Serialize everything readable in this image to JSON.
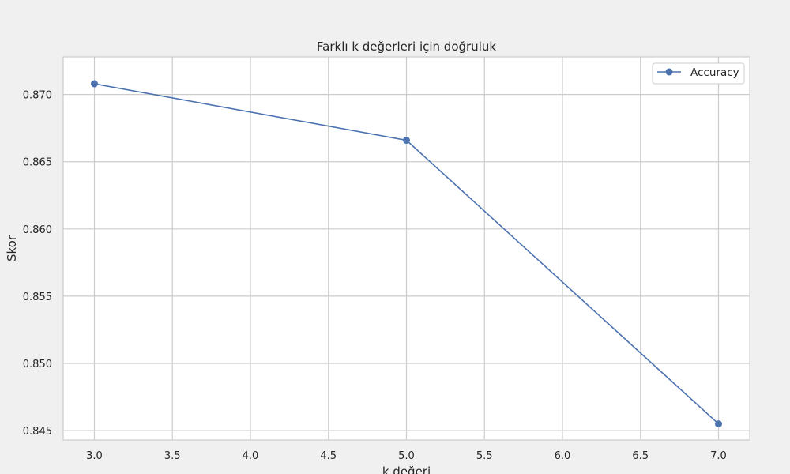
{
  "chart_data": {
    "type": "line",
    "title": "Farklı k değerleri için doğruluk",
    "xlabel": "k değeri",
    "ylabel": "Skor",
    "xlim": [
      2.8,
      7.2
    ],
    "ylim": [
      0.8443,
      0.8728
    ],
    "xticks": [
      3.0,
      3.5,
      4.0,
      4.5,
      5.0,
      5.5,
      6.0,
      6.5,
      7.0
    ],
    "yticks": [
      0.845,
      0.85,
      0.855,
      0.86,
      0.865,
      0.87
    ],
    "xtick_labels": [
      "3.0",
      "3.5",
      "4.0",
      "4.5",
      "5.0",
      "5.5",
      "6.0",
      "6.5",
      "7.0"
    ],
    "ytick_labels": [
      "0.845",
      "0.850",
      "0.855",
      "0.860",
      "0.865",
      "0.870"
    ],
    "grid": true,
    "legend_position": "top-right",
    "series": [
      {
        "name": "Accuracy",
        "color": "#4c72b0",
        "marker": "circle",
        "x": [
          3,
          5,
          7
        ],
        "y": [
          0.8708,
          0.8666,
          0.8455
        ]
      }
    ]
  }
}
